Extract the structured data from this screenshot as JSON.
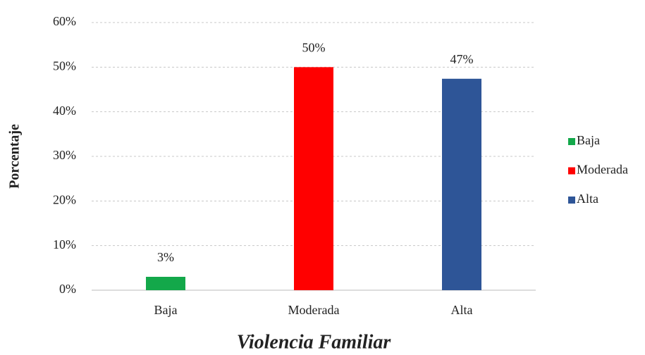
{
  "chart_data": {
    "type": "bar",
    "x_label": "Violencia Familiar",
    "y_label": "Porcentaje",
    "categories": [
      "Baja",
      "Moderada",
      "Alta"
    ],
    "series": [
      {
        "name": "Baja",
        "color": "#13a84a",
        "values": [
          3,
          null,
          null
        ],
        "value_labels": [
          "3%",
          null,
          null
        ]
      },
      {
        "name": "Moderada",
        "color": "#ff0000",
        "values": [
          null,
          50,
          null
        ],
        "value_labels": [
          null,
          "50%",
          null
        ]
      },
      {
        "name": "Alta",
        "color": "#2e5597",
        "values": [
          null,
          null,
          47.4
        ],
        "value_labels": [
          null,
          null,
          "47%"
        ]
      }
    ],
    "ylim": [
      0,
      60
    ],
    "yticks": [
      {
        "value": 0,
        "label": "0%"
      },
      {
        "value": 10,
        "label": "10%"
      },
      {
        "value": 20,
        "label": "20%"
      },
      {
        "value": 30,
        "label": "30%"
      },
      {
        "value": 40,
        "label": "40%"
      },
      {
        "value": 50,
        "label": "50%"
      },
      {
        "value": 60,
        "label": "60%"
      }
    ],
    "grid": true,
    "legend": "right"
  }
}
